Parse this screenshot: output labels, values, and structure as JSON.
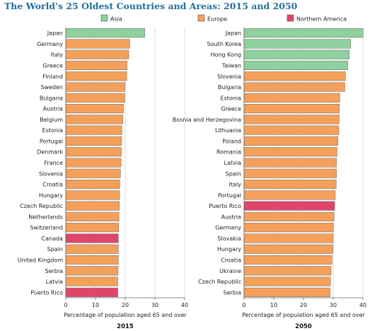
{
  "title": "The World's 25 Oldest Countries and Areas: 2015 and 2050",
  "legend": [
    {
      "name": "Asia",
      "color": "#8fd19e"
    },
    {
      "name": "Europe",
      "color": "#f5a05a"
    },
    {
      "name": "Northern America",
      "color": "#e1456a"
    }
  ],
  "chart_data": [
    {
      "type": "bar",
      "orientation": "horizontal",
      "title": "2015",
      "xlabel": "Percentage of population aged 65 and over",
      "xlim": [
        0,
        40
      ],
      "xticks": [
        0,
        10,
        20,
        30,
        40
      ],
      "grid": true,
      "bars": [
        {
          "country": "Japan",
          "value": 26.6,
          "region": "Asia"
        },
        {
          "country": "Germany",
          "value": 21.5,
          "region": "Europe"
        },
        {
          "country": "Italy",
          "value": 21.2,
          "region": "Europe"
        },
        {
          "country": "Greece",
          "value": 20.6,
          "region": "Europe"
        },
        {
          "country": "Finland",
          "value": 20.5,
          "region": "Europe"
        },
        {
          "country": "Sweden",
          "value": 19.9,
          "region": "Europe"
        },
        {
          "country": "Bulgaria",
          "value": 19.8,
          "region": "Europe"
        },
        {
          "country": "Austria",
          "value": 19.4,
          "region": "Europe"
        },
        {
          "country": "Belgium",
          "value": 19.2,
          "region": "Europe"
        },
        {
          "country": "Estonia",
          "value": 18.9,
          "region": "Europe"
        },
        {
          "country": "Portugal",
          "value": 18.8,
          "region": "Europe"
        },
        {
          "country": "Denmark",
          "value": 18.7,
          "region": "Europe"
        },
        {
          "country": "France",
          "value": 18.6,
          "region": "Europe"
        },
        {
          "country": "Slovenia",
          "value": 18.4,
          "region": "Europe"
        },
        {
          "country": "Croatia",
          "value": 18.2,
          "region": "Europe"
        },
        {
          "country": "Hungary",
          "value": 18.1,
          "region": "Europe"
        },
        {
          "country": "Czech Republic",
          "value": 18.0,
          "region": "Europe"
        },
        {
          "country": "Netherlands",
          "value": 17.9,
          "region": "Europe"
        },
        {
          "country": "Switzerland",
          "value": 17.8,
          "region": "Europe"
        },
        {
          "country": "Canada",
          "value": 17.7,
          "region": "Northern America"
        },
        {
          "country": "Spain",
          "value": 17.7,
          "region": "Europe"
        },
        {
          "country": "United Kingdom",
          "value": 17.7,
          "region": "Europe"
        },
        {
          "country": "Serbia",
          "value": 17.6,
          "region": "Europe"
        },
        {
          "country": "Latvia",
          "value": 17.5,
          "region": "Europe"
        },
        {
          "country": "Puerto Rico",
          "value": 17.5,
          "region": "Northern America"
        }
      ]
    },
    {
      "type": "bar",
      "orientation": "horizontal",
      "title": "2050",
      "xlabel": "Percentage of population aged 65 and over",
      "xlim": [
        0,
        40
      ],
      "xticks": [
        0,
        10,
        20,
        30,
        40
      ],
      "grid": true,
      "bars": [
        {
          "country": "Japan",
          "value": 40.1,
          "region": "Asia"
        },
        {
          "country": "South Korea",
          "value": 35.9,
          "region": "Asia"
        },
        {
          "country": "Hong Kong",
          "value": 35.4,
          "region": "Asia"
        },
        {
          "country": "Taiwan",
          "value": 34.9,
          "region": "Asia"
        },
        {
          "country": "Slovenia",
          "value": 34.1,
          "region": "Europe"
        },
        {
          "country": "Bulgaria",
          "value": 33.9,
          "region": "Europe"
        },
        {
          "country": "Estonia",
          "value": 32.2,
          "region": "Europe"
        },
        {
          "country": "Greece",
          "value": 32.1,
          "region": "Europe"
        },
        {
          "country": "Bosnia and Herzegovina",
          "value": 32.0,
          "region": "Europe"
        },
        {
          "country": "Lithuania",
          "value": 31.9,
          "region": "Europe"
        },
        {
          "country": "Poland",
          "value": 31.6,
          "region": "Europe"
        },
        {
          "country": "Romania",
          "value": 31.3,
          "region": "Europe"
        },
        {
          "country": "Latvia",
          "value": 31.1,
          "region": "Europe"
        },
        {
          "country": "Spain",
          "value": 31.1,
          "region": "Europe"
        },
        {
          "country": "Italy",
          "value": 31.0,
          "region": "Europe"
        },
        {
          "country": "Portugal",
          "value": 30.7,
          "region": "Europe"
        },
        {
          "country": "Puerto Rico",
          "value": 30.5,
          "region": "Northern America"
        },
        {
          "country": "Austria",
          "value": 30.3,
          "region": "Europe"
        },
        {
          "country": "Germany",
          "value": 30.1,
          "region": "Europe"
        },
        {
          "country": "Slovakia",
          "value": 30.0,
          "region": "Europe"
        },
        {
          "country": "Hungary",
          "value": 29.9,
          "region": "Europe"
        },
        {
          "country": "Croatia",
          "value": 29.6,
          "region": "Europe"
        },
        {
          "country": "Ukraine",
          "value": 29.3,
          "region": "Europe"
        },
        {
          "country": "Czech Republic",
          "value": 29.1,
          "region": "Europe"
        },
        {
          "country": "Serbia",
          "value": 29.0,
          "region": "Europe"
        }
      ]
    }
  ]
}
